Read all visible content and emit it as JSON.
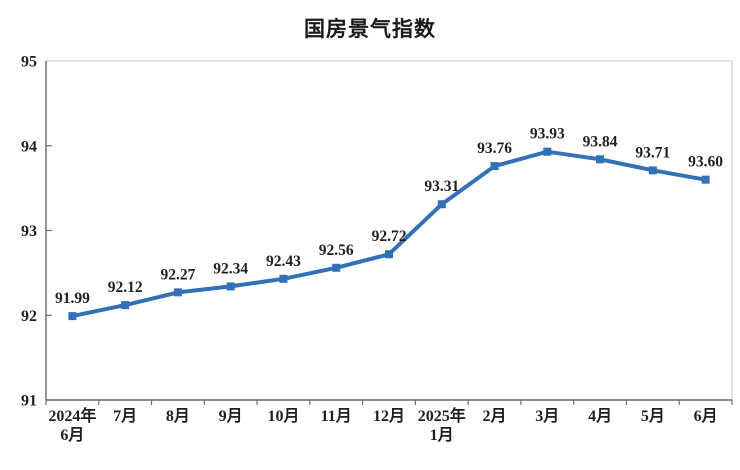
{
  "chart_data": {
    "type": "line",
    "title": "国房景气指数",
    "categories": [
      [
        "2024年",
        "6月"
      ],
      [
        "7月"
      ],
      [
        "8月"
      ],
      [
        "9月"
      ],
      [
        "10月"
      ],
      [
        "11月"
      ],
      [
        "12月"
      ],
      [
        "2025年",
        "1月"
      ],
      [
        "2月"
      ],
      [
        "3月"
      ],
      [
        "4月"
      ],
      [
        "5月"
      ],
      [
        "6月"
      ]
    ],
    "values": [
      91.99,
      92.12,
      92.27,
      92.34,
      92.43,
      92.56,
      92.72,
      93.31,
      93.76,
      93.93,
      93.84,
      93.71,
      93.6
    ],
    "data_labels": [
      "91.99",
      "92.12",
      "92.27",
      "92.34",
      "92.43",
      "92.56",
      "92.72",
      "93.31",
      "93.76",
      "93.93",
      "93.84",
      "93.71",
      "93.60"
    ],
    "xlabel": "",
    "ylabel": "",
    "ylim": [
      91,
      95
    ],
    "y_ticks": [
      91,
      92,
      93,
      94,
      95
    ],
    "grid": false,
    "legend": "none",
    "colors": {
      "line": "#3470B7",
      "marker": "#3470B7",
      "label_text": "#1f1f1f",
      "axis": "#6e6e6e",
      "plot_border": "#d9d9d9",
      "background": "#ffffff"
    }
  }
}
